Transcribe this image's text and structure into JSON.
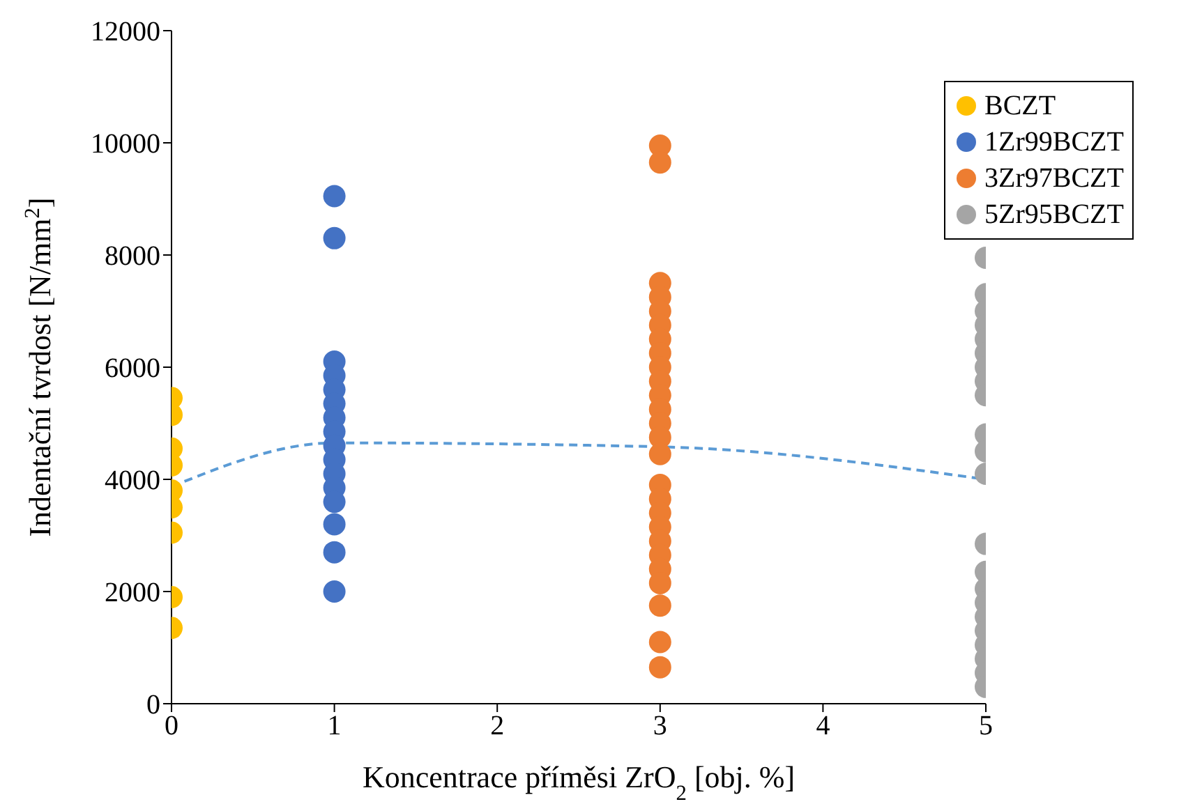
{
  "chart_data": {
    "type": "scatter",
    "xlabel": "Koncentrace příměsi ZrO$_{2}$ [obj. %]",
    "ylabel": "Indentační tvrdost [N/mm$^{2}$]",
    "xlim": [
      0,
      5
    ],
    "xticks": [
      0,
      1,
      2,
      3,
      4,
      5
    ],
    "ylim": [
      0,
      12000
    ],
    "yticks": [
      0,
      2000,
      4000,
      6000,
      8000,
      10000,
      12000
    ],
    "grid": false,
    "legend": "top right",
    "marker": "circle",
    "series": [
      {
        "name": "BCZT",
        "color": "#ffc000",
        "x": [
          0,
          0,
          0,
          0,
          0,
          0,
          0,
          0,
          0
        ],
        "values": [
          5450,
          5150,
          4550,
          4250,
          3800,
          3500,
          3050,
          1900,
          1350
        ]
      },
      {
        "name": "1Zr99BCZT",
        "color": "#4472c4",
        "x": [
          1,
          1,
          1,
          1,
          1,
          1,
          1,
          1,
          1,
          1,
          1,
          1,
          1,
          1,
          1,
          1
        ],
        "values": [
          9050,
          8300,
          6100,
          5850,
          5600,
          5350,
          5100,
          4850,
          4600,
          4350,
          4100,
          3850,
          3600,
          3200,
          2700,
          2000
        ]
      },
      {
        "name": "3Zr97BCZT",
        "color": "#ed7d31",
        "x": [
          3,
          3,
          3,
          3,
          3,
          3,
          3,
          3,
          3,
          3,
          3,
          3,
          3,
          3,
          3,
          3,
          3,
          3,
          3,
          3,
          3,
          3,
          3,
          3,
          3,
          3
        ],
        "values": [
          9950,
          9650,
          7500,
          7250,
          7000,
          6750,
          6500,
          6250,
          6000,
          5750,
          5500,
          5250,
          5000,
          4750,
          4450,
          3900,
          3650,
          3400,
          3150,
          2900,
          2650,
          2400,
          2150,
          1750,
          1100,
          650
        ]
      },
      {
        "name": "5Zr95BCZT",
        "color": "#a5a5a5",
        "x": [
          5,
          5,
          5,
          5,
          5,
          5,
          5,
          5,
          5,
          5,
          5,
          5,
          5,
          5,
          5,
          5,
          5,
          5,
          5,
          5,
          5,
          5
        ],
        "values": [
          7950,
          7300,
          7000,
          6750,
          6500,
          6250,
          6000,
          5750,
          5500,
          4800,
          4500,
          4100,
          2850,
          2350,
          2050,
          1800,
          1550,
          1300,
          1050,
          800,
          550,
          300
        ]
      },
      {
        "type": "line",
        "color": "#5b9bd5",
        "line_style": "dashed",
        "marker": "none",
        "x": [
          0,
          1,
          3,
          5
        ],
        "values": [
          3870,
          4650,
          4580,
          4000
        ]
      }
    ]
  }
}
